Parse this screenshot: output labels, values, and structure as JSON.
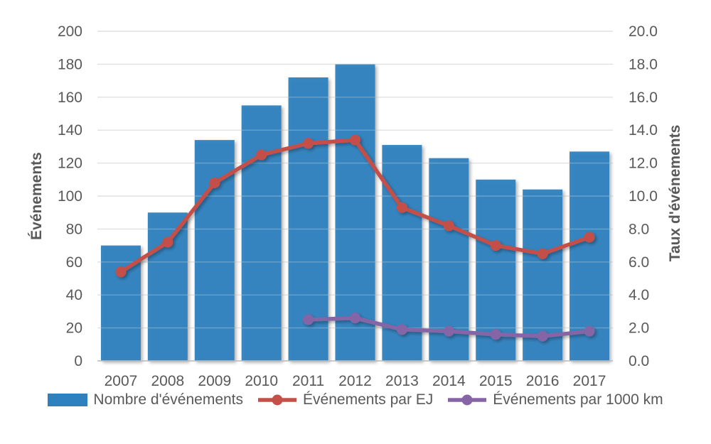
{
  "chart_data": {
    "type": "combo",
    "categories": [
      "2007",
      "2008",
      "2009",
      "2010",
      "2011",
      "2012",
      "2013",
      "2014",
      "2015",
      "2016",
      "2017"
    ],
    "series": [
      {
        "name": "Nombre d'événements",
        "type": "bar",
        "axis": "left",
        "color": "#2e81be",
        "values": [
          70,
          90,
          134,
          155,
          172,
          180,
          131,
          123,
          110,
          104,
          127
        ]
      },
      {
        "name": "Événements par EJ",
        "type": "line",
        "axis": "right",
        "color": "#c4504a",
        "values": [
          5.4,
          7.2,
          10.8,
          12.5,
          13.2,
          13.4,
          9.3,
          8.2,
          7.0,
          6.5,
          7.5
        ]
      },
      {
        "name": "Événements par 1000 km",
        "type": "line",
        "axis": "right",
        "color": "#8565a6",
        "values": [
          null,
          null,
          null,
          null,
          2.5,
          2.6,
          1.9,
          1.8,
          1.6,
          1.5,
          1.8
        ]
      }
    ],
    "left_axis": {
      "title": "Événements",
      "min": 0,
      "max": 200,
      "step": 20
    },
    "right_axis": {
      "title": "Taux d'événements",
      "min": 0,
      "max": 20,
      "step": 2,
      "decimals": 1
    },
    "legend_position": "bottom",
    "grid": true
  },
  "colors": {
    "text": "#595959",
    "grid": "#d9d9d9",
    "axis_line": "#bfbfbf",
    "background": "#ffffff"
  }
}
